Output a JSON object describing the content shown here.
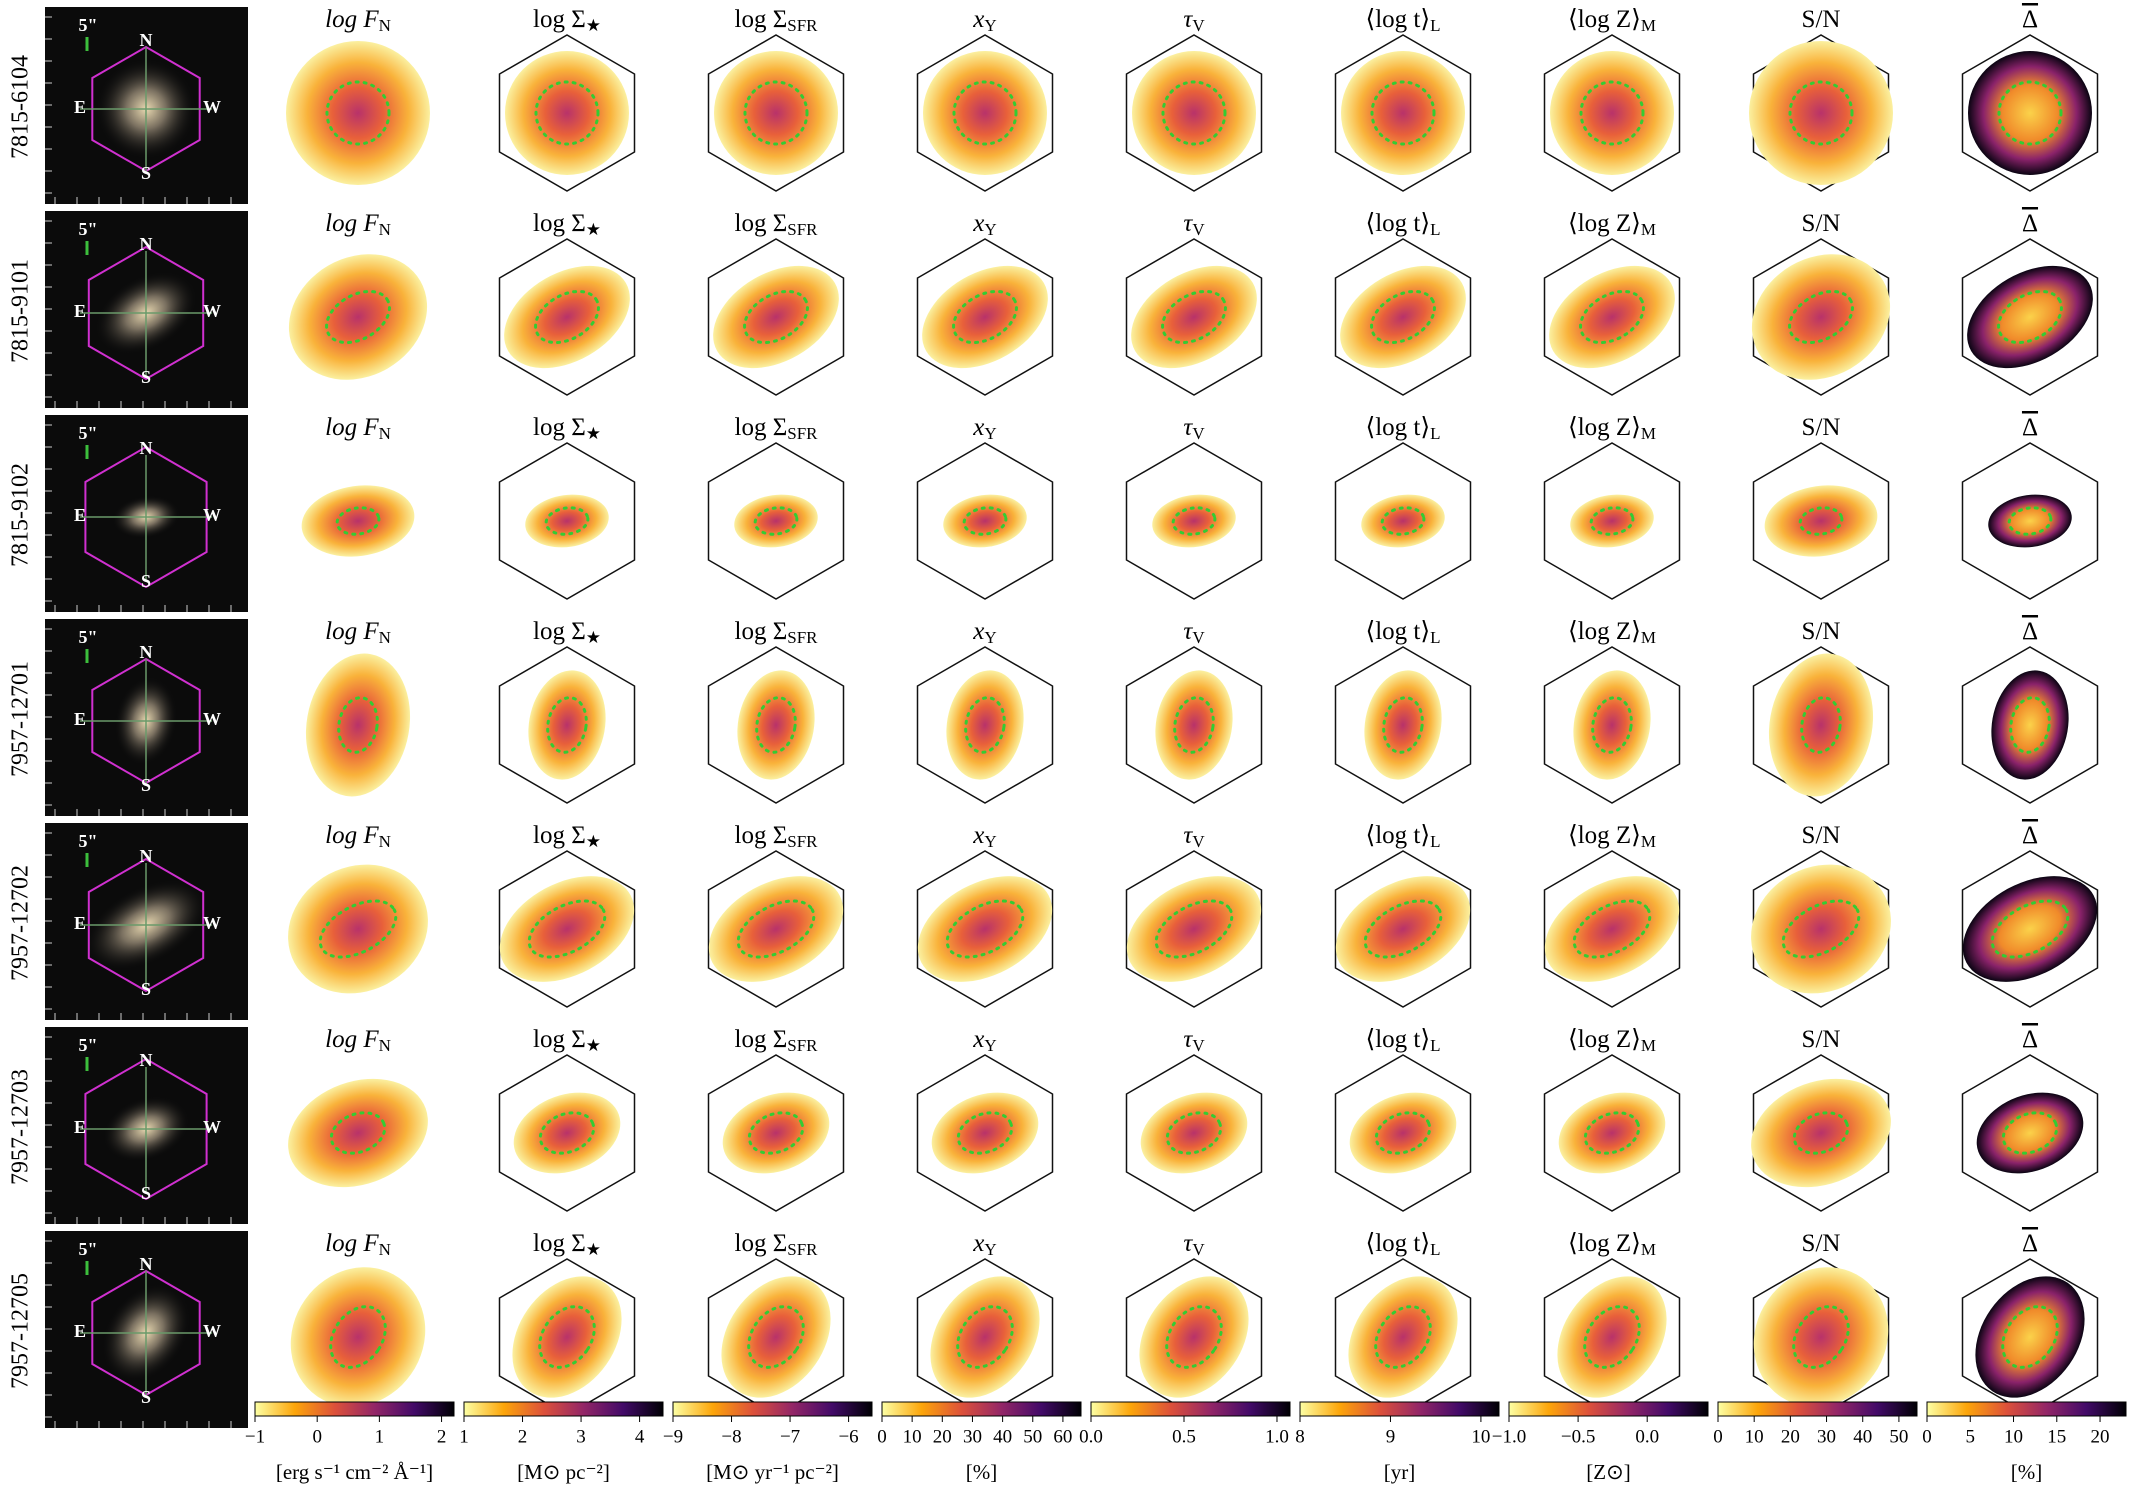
{
  "figure": {
    "row_ids": [
      "7815-6104",
      "7815-9101",
      "7815-9102",
      "7957-12701",
      "7957-12702",
      "7957-12703",
      "7957-12705"
    ],
    "thumbnail": {
      "scale_label": "5\"",
      "north": "N",
      "east": "E",
      "west": "W",
      "south": "S"
    },
    "panels": [
      {
        "title": "log F",
        "sub": "N"
      },
      {
        "title": "log Σ",
        "sub": "★"
      },
      {
        "title": "log Σ",
        "sub": "SFR"
      },
      {
        "title": "x",
        "sub": "Y"
      },
      {
        "title": "τ",
        "sub": "V"
      },
      {
        "title": "⟨log t⟩",
        "sub": "L"
      },
      {
        "title": "⟨log Z⟩",
        "sub": "M"
      },
      {
        "title": "S/N"
      },
      {
        "title": "Δ"
      }
    ],
    "colorbars": [
      {
        "lim": [
          -1,
          2.2
        ],
        "ticks": [
          {
            "value": -1,
            "label": "−1"
          },
          0,
          1,
          2
        ],
        "unit": "[erg s⁻¹ cm⁻² Å⁻¹]"
      },
      {
        "lim": [
          1,
          4.4
        ],
        "ticks": [
          1,
          2,
          3,
          4
        ],
        "unit": "[M⊙ pc⁻²]"
      },
      {
        "lim": [
          -9,
          -5.6
        ],
        "ticks": [
          {
            "value": -9,
            "label": "−9"
          },
          {
            "value": -8,
            "label": "−8"
          },
          {
            "value": -7,
            "label": "−7"
          },
          {
            "value": -6,
            "label": "−6"
          }
        ],
        "unit": "[M⊙ yr⁻¹ pc⁻²]"
      },
      {
        "lim": [
          0,
          66
        ],
        "ticks": [
          0,
          10,
          20,
          30,
          40,
          50,
          60
        ],
        "unit": "[%]"
      },
      {
        "lim": [
          0,
          1.07
        ],
        "ticks": [
          {
            "value": 0,
            "label": "0.0"
          },
          0.5,
          {
            "value": 1,
            "label": "1.0"
          }
        ]
      },
      {
        "lim": [
          8,
          10.2
        ],
        "ticks": [
          8,
          9,
          10
        ],
        "unit": "[yr]"
      },
      {
        "lim": [
          -1,
          0.44
        ],
        "ticks": [
          {
            "value": -1,
            "label": "−1.0"
          },
          {
            "value": -0.5,
            "label": "−0.5"
          },
          {
            "value": 0,
            "label": "0.0"
          }
        ],
        "unit": "[Z⊙]"
      },
      {
        "lim": [
          0,
          55
        ],
        "ticks": [
          0,
          10,
          20,
          30,
          40,
          50
        ]
      },
      {
        "lim": [
          0,
          23
        ],
        "ticks": [
          0,
          5,
          10,
          15,
          20
        ],
        "unit": "[%]"
      }
    ]
  }
}
